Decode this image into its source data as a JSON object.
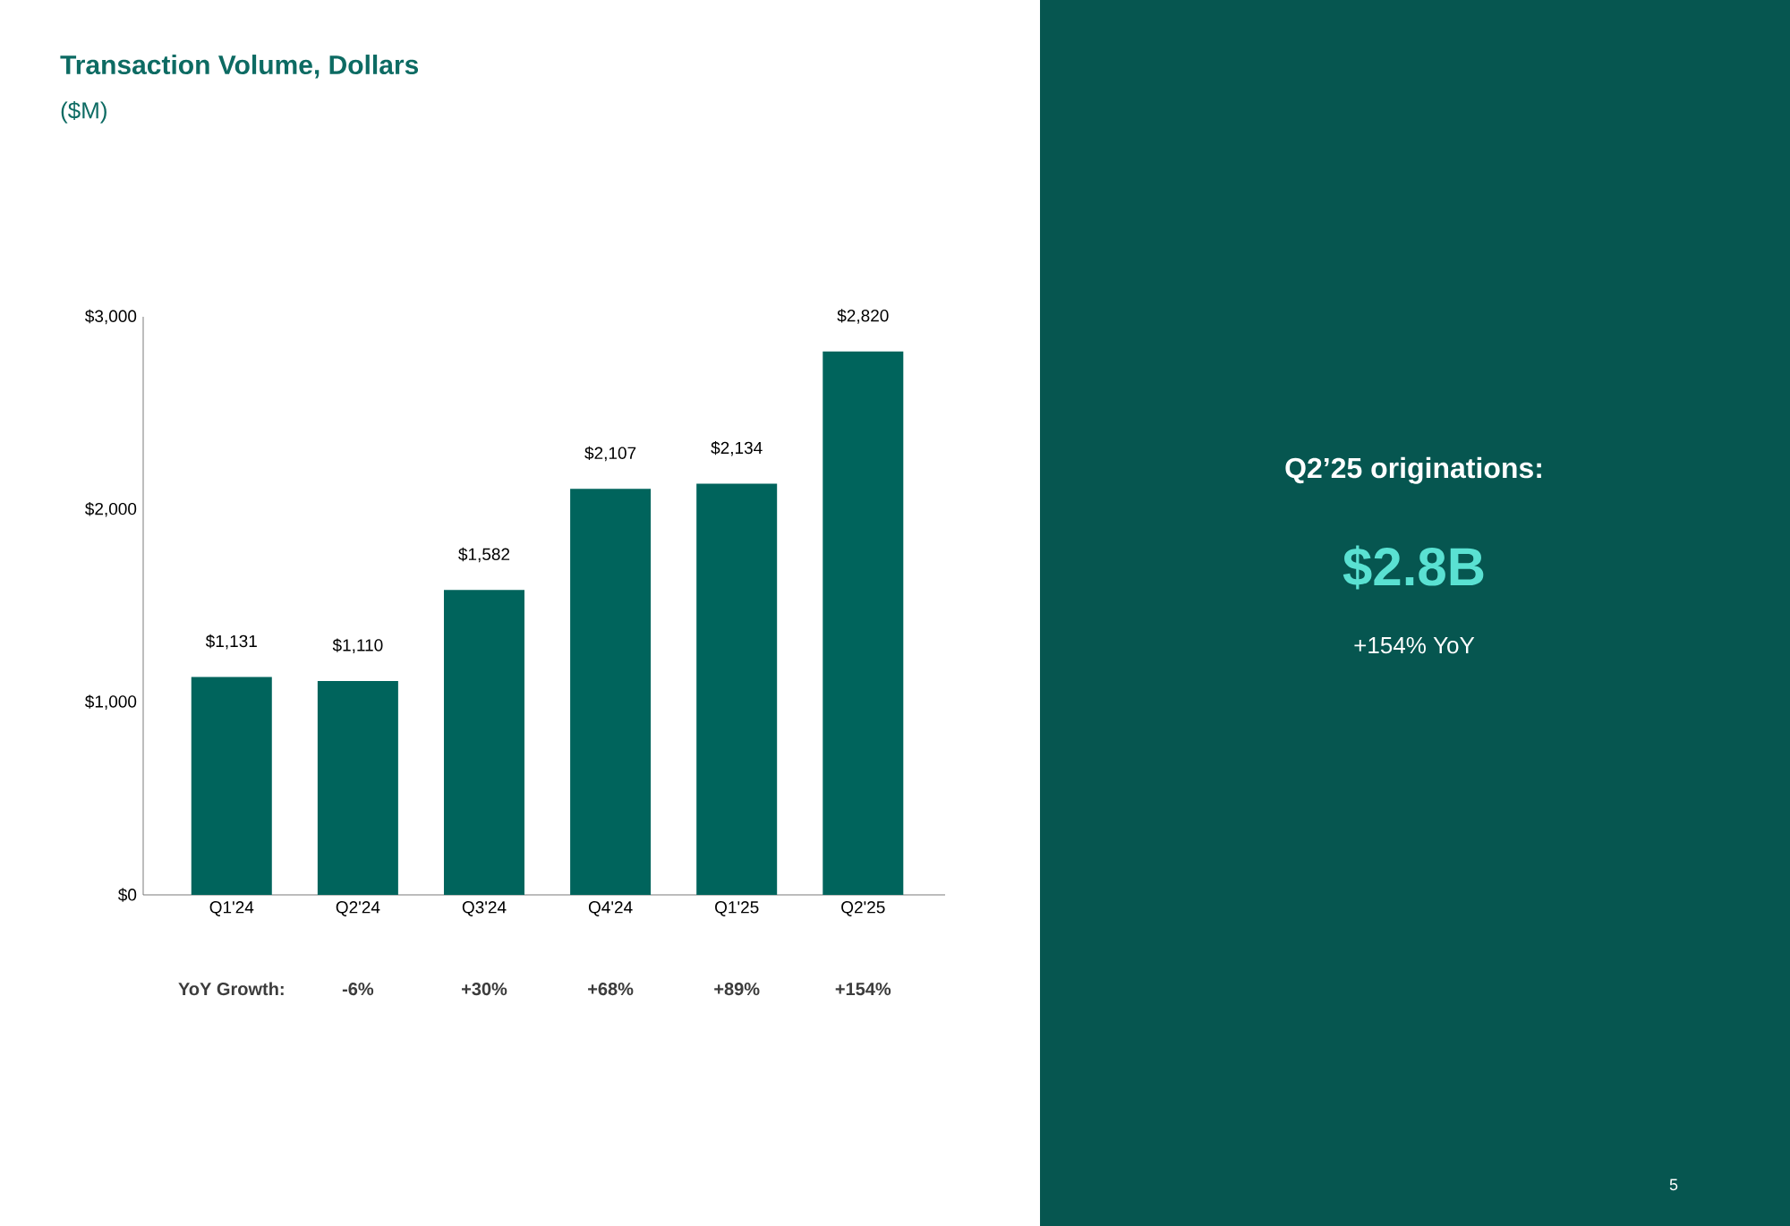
{
  "chart_data": [
    {
      "type": "bar",
      "title": "Transaction Volume, Dollars",
      "subtitle": "($M)",
      "categories": [
        "Q1'24",
        "Q2'24",
        "Q3'24",
        "Q4'24",
        "Q1'25",
        "Q2'25"
      ],
      "values": [
        1131,
        1110,
        1582,
        2107,
        2134,
        2820
      ],
      "value_labels": [
        "$1,131",
        "$1,110",
        "$1,582",
        "$2,107",
        "$2,134",
        "$2,820"
      ],
      "color": "#00645c",
      "ylim": [
        0,
        3000
      ],
      "yticks": [
        {
          "value": 0,
          "label": "$0"
        },
        {
          "value": 1000,
          "label": "$1,000"
        },
        {
          "value": 2000,
          "label": "$2,000"
        },
        {
          "value": 3000,
          "label": "$3,000"
        }
      ],
      "annotations": [
        "YoY Growth:",
        "-6%",
        "+30%",
        "+68%",
        "+89%",
        "+154%"
      ]
    },
    {
      "type": "other",
      "title": "Q2’25 originations:",
      "annotations": [
        "$2.8B",
        "+154% YoY",
        "5"
      ]
    }
  ]
}
